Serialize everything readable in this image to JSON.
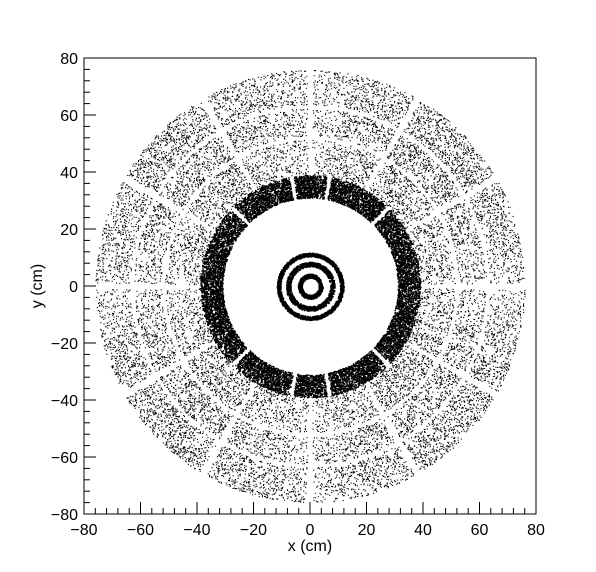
{
  "chart_data": {
    "type": "scatter",
    "title": "",
    "xlabel": "x (cm)",
    "ylabel": "y (cm)",
    "xlim": [
      -80,
      80
    ],
    "ylim": [
      -80,
      80
    ],
    "xticks": [
      "−80",
      "−60",
      "−40",
      "−20",
      "0",
      "20",
      "40",
      "60",
      "80"
    ],
    "yticks": [
      "−80",
      "−60",
      "−40",
      "−20",
      "0",
      "20",
      "40",
      "60",
      "80"
    ],
    "grid": false,
    "legend": "none",
    "marker_color": "#000000",
    "series": [
      {
        "structure": "inner-pixel-rings",
        "rings": [
          {
            "r_min": 3.0,
            "r_max": 4.4,
            "density": 1.0
          },
          {
            "r_min": 7.0,
            "r_max": 8.6,
            "density": 0.85
          },
          {
            "r_min": 10.5,
            "r_max": 11.8,
            "density": 0.85
          }
        ],
        "center": [
          0,
          0
        ]
      },
      {
        "structure": "dense-inner-barrel-ring",
        "r_min": 31,
        "r_max": 39,
        "sector_gaps_deg": [
          45,
          80,
          100,
          135,
          225,
          260,
          280,
          315
        ],
        "density": 0.95
      },
      {
        "structure": "outer-tracker-disk",
        "r_min": 39,
        "r_max": 76,
        "density": 0.35,
        "gap_radii": [
          52,
          63
        ],
        "spoke_angles_deg": [
          0,
          30,
          60,
          90,
          120,
          150,
          180,
          210,
          240,
          270,
          300,
          330
        ]
      }
    ]
  }
}
